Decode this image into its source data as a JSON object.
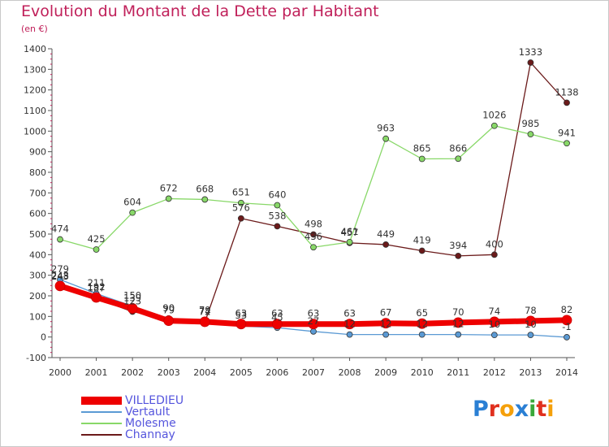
{
  "title": "Evolution du Montant de la Dette par Habitant",
  "subtitle": "(en €)",
  "logo": {
    "text": "Proxiti",
    "colors": [
      "#2a7fd4",
      "#e0301e",
      "#f5a00a",
      "#2a7fd4",
      "#3aa83a",
      "#e0301e",
      "#f5a00a"
    ]
  },
  "chart_data": {
    "type": "line",
    "title": "Evolution du Montant de la Dette par Habitant",
    "subtitle": "(en €)",
    "xlabel": "",
    "ylabel": "",
    "x": [
      "2000",
      "2001",
      "2002",
      "2003",
      "2004",
      "2005",
      "2006",
      "2007",
      "2008",
      "2009",
      "2010",
      "2011",
      "2012",
      "2013",
      "2014"
    ],
    "ylim": [
      -100,
      1400
    ],
    "yticks": [
      -100,
      0,
      100,
      200,
      300,
      400,
      500,
      600,
      700,
      800,
      900,
      1000,
      1100,
      1200,
      1300,
      1400
    ],
    "grid": false,
    "legend_position": "bottom-left",
    "series": [
      {
        "name": "Channay",
        "color": "#6b1a1a",
        "line_width": 1.3,
        "values": [
          243,
          187,
          123,
          90,
          72,
          576,
          538,
          498,
          457,
          449,
          419,
          394,
          400,
          1333,
          1138
        ],
        "labels": [
          "243",
          "187",
          "123",
          "90",
          "72",
          "576",
          "538",
          "498",
          "457",
          "449",
          "419",
          "394",
          "400",
          "1333",
          "1138"
        ]
      },
      {
        "name": "Molesme",
        "color": "#88d868",
        "line_width": 1.3,
        "values": [
          474,
          425,
          604,
          672,
          668,
          651,
          640,
          436,
          461,
          963,
          865,
          866,
          1026,
          985,
          941
        ],
        "labels": [
          "474",
          "425",
          "604",
          "672",
          "668",
          "651",
          "640",
          "436",
          "461",
          "963",
          "865",
          "866",
          "1026",
          "985",
          "941"
        ]
      },
      {
        "name": "Vertault",
        "color": "#5b9ad4",
        "line_width": 1.3,
        "values": [
          279,
          211,
          150,
          90,
          79,
          53,
          45,
          27,
          12,
          12,
          12,
          12,
          10,
          10,
          -1
        ],
        "labels": [
          "279",
          "211",
          "150",
          "90",
          "79",
          "53",
          "45",
          "27",
          "12",
          "12",
          "12",
          "12",
          "10",
          "10",
          "-1"
        ]
      },
      {
        "name": "VILLEDIEU",
        "color": "#ee0000",
        "line_width": 7,
        "values": [
          248,
          192,
          139,
          79,
          74,
          63,
          63,
          63,
          63,
          67,
          65,
          70,
          74,
          78,
          82
        ],
        "labels": [
          "248",
          "192",
          "139",
          "79",
          "74",
          "63",
          "63",
          "63",
          "63",
          "67",
          "65",
          "70",
          "74",
          "78",
          "82"
        ]
      }
    ]
  },
  "legend": [
    {
      "name": "VILLEDIEU",
      "color": "#ee0000",
      "text_color": "#5555dd",
      "thickness": 10
    },
    {
      "name": "Vertault",
      "color": "#5b9ad4",
      "text_color": "#5555dd",
      "thickness": 2
    },
    {
      "name": "Molesme",
      "color": "#88d868",
      "text_color": "#5555dd",
      "thickness": 2
    },
    {
      "name": "Channay",
      "color": "#6b1a1a",
      "text_color": "#5555dd",
      "thickness": 2
    }
  ]
}
